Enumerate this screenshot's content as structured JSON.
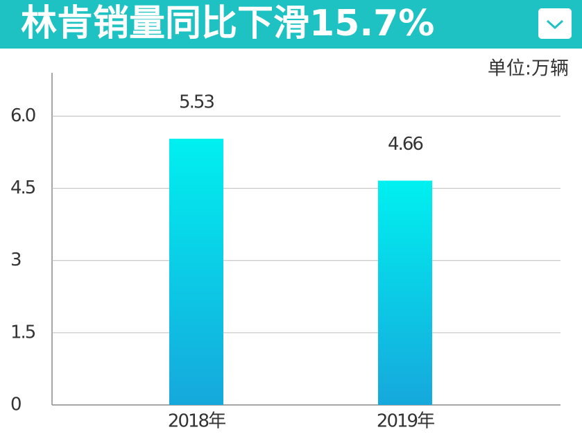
{
  "chart_data": {
    "type": "bar",
    "title": "林肯销量同比下滑15.7%",
    "unit_label": "单位:万辆",
    "categories": [
      "2018年",
      "2019年"
    ],
    "values": [
      5.53,
      4.66
    ],
    "colors": [
      "#00f0f0",
      "#16a8dc"
    ],
    "ylim": [
      0,
      6.9
    ],
    "yticks": [
      0,
      1.5,
      3.0,
      4.5,
      {
        "value": 6.0,
        "label": "6.0"
      }
    ],
    "grid": true
  }
}
